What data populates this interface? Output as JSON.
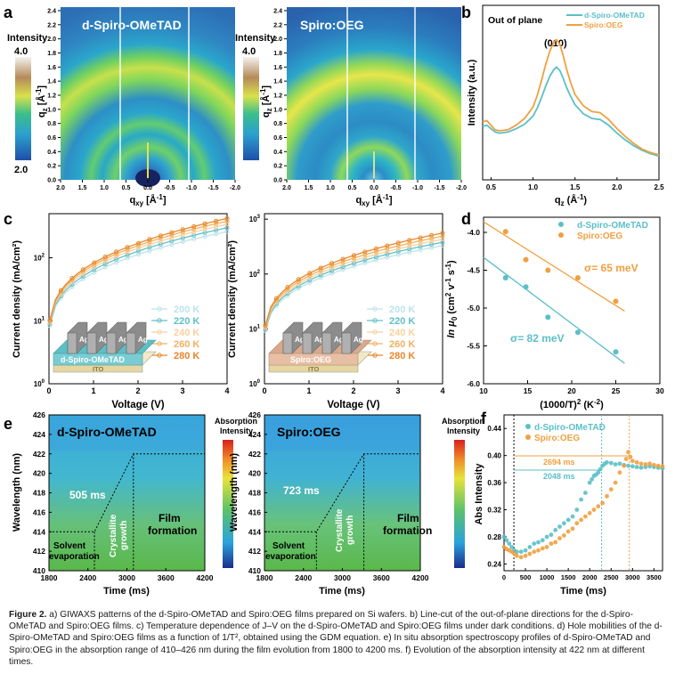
{
  "panels": {
    "a": {
      "letter": "a",
      "left_title": "d-Spiro-OMeTAD",
      "right_title": "Spiro:OEG",
      "intensity_label": "Intensity",
      "intensity_max": "4.0",
      "intensity_min": "2.0",
      "ylabel": "q",
      "ylabel_sub": "z",
      "ylabel_unit": " [Å",
      "ylabel_exp": "-1",
      "ylabel_close": "]",
      "xlabel": "q",
      "xlabel_sub": "xy",
      "xlabel_unit": " [Å",
      "xlabel_exp": "-1",
      "xlabel_close": "]",
      "yticks": [
        "0.0",
        "0.2",
        "0.4",
        "0.6",
        "0.8",
        "1.0",
        "1.2",
        "1.4",
        "1.6",
        "1.8",
        "2.0",
        "2.2",
        "2.4"
      ],
      "xticks": [
        "2.0",
        "1.5",
        "1.0",
        "0.5",
        "0.0",
        "-0.5",
        "-1.0",
        "-1.5",
        "-2.0"
      ]
    },
    "b": {
      "letter": "b",
      "title": "Out of plane",
      "peak_label": "(010)",
      "ylabel": "Intensity (a.u.)",
      "xlabel": "q",
      "xlabel_sub": "z",
      "xlabel_unit": " (Å",
      "xlabel_exp": "-1",
      "xlabel_close": ")",
      "xticks": [
        "0.5",
        "1.0",
        "1.5",
        "2.0",
        "2.5"
      ],
      "legend": [
        "d-Spiro-OMeTAD",
        "Spiro:OEG"
      ]
    },
    "c": {
      "letter": "c",
      "ylabel": "Current density (mA/cm²)",
      "xlabel": "Voltage (V)",
      "xticks": [
        "0",
        "1",
        "2",
        "3",
        "4"
      ],
      "left_yticks": [
        "10",
        "10",
        "10"
      ],
      "left_yexps": [
        "0",
        "1",
        "2"
      ],
      "right_yticks": [
        "10",
        "10",
        "10",
        "10"
      ],
      "right_yexps": [
        "0",
        "1",
        "2",
        "3"
      ],
      "temps": [
        "200 K",
        "220 K",
        "240 K",
        "260 K",
        "280 K"
      ],
      "left_device": {
        "electrode": "Ag",
        "layer": "d-Spiro-OMeTAD",
        "substrate": "ITO"
      },
      "right_device": {
        "electrode": "Ag",
        "layer": "Spiro:OEG",
        "substrate": "ITO"
      }
    },
    "d": {
      "letter": "d",
      "ylabel_pre": "ln μ",
      "ylabel_sub": "0",
      "ylabel_post": " (cm",
      "ylabel_exp1": "2",
      "ylabel_mid": " v",
      "ylabel_exp2": "-1",
      "ylabel_end": " s",
      "ylabel_exp3": "-1",
      "ylabel_close": ")",
      "xlabel": "(1000/T)",
      "xlabel_exp": "2",
      "xlabel_unit": " (K",
      "xlabel_exp2": "-2",
      "xlabel_close": ")",
      "xticks": [
        "10",
        "15",
        "20",
        "25",
        "30"
      ],
      "yticks": [
        "-4.0",
        "-4.5",
        "-5.0",
        "-5.5",
        "-6.0"
      ],
      "legend": [
        "d-Spiro-OMeTAD",
        "Spiro:OEG"
      ],
      "sigma_oeg": "σ= 65 meV",
      "sigma_spiro": "σ= 82 meV"
    },
    "e": {
      "letter": "e",
      "left_title": "d-Spiro-OMeTAD",
      "right_title": "Spiro:OEG",
      "left_time": "505 ms",
      "right_time": "723 ms",
      "ylabel": "Wavelength (nm)",
      "xlabel": "Time (ms)",
      "yticks": [
        "410",
        "412",
        "414",
        "416",
        "418",
        "420",
        "422",
        "424",
        "426"
      ],
      "xticks": [
        "1800",
        "2400",
        "3000",
        "3600",
        "4200"
      ],
      "stage1": [
        "Solvent",
        "evaporation"
      ],
      "stage2": [
        "Crystallite",
        "growth"
      ],
      "stage3": [
        "Film",
        "formation"
      ],
      "cbar_label": [
        "Absorption",
        "Intensity"
      ]
    },
    "f": {
      "letter": "f",
      "ylabel": "Abs Intensity",
      "xlabel": "Time (ms)",
      "yticks": [
        "0.24",
        "0.28",
        "0.32",
        "0.36",
        "0.40",
        "0.44"
      ],
      "xticks": [
        "0",
        "500",
        "1000",
        "1500",
        "2000",
        "2500",
        "3000",
        "3500"
      ],
      "legend": [
        "d-Spiro-OMeTAD",
        "Spiro:OEG"
      ],
      "interval_oeg": "2694 ms",
      "interval_spiro": "2048 ms"
    }
  },
  "chart_data": [
    {
      "panel": "b",
      "type": "line",
      "x_range": [
        0.4,
        2.5
      ],
      "series": [
        {
          "name": "d-Spiro-OMeTAD",
          "color": "#5bbfc7",
          "x": [
            0.4,
            0.45,
            0.5,
            0.55,
            0.6,
            0.7,
            0.8,
            0.9,
            1.0,
            1.05,
            1.1,
            1.15,
            1.2,
            1.25,
            1.28,
            1.32,
            1.36,
            1.4,
            1.45,
            1.5,
            1.6,
            1.7,
            1.8,
            1.9,
            2.0,
            2.1,
            2.2,
            2.3,
            2.4,
            2.5
          ],
          "y": [
            0.36,
            0.37,
            0.34,
            0.31,
            0.3,
            0.31,
            0.34,
            0.38,
            0.45,
            0.52,
            0.61,
            0.71,
            0.8,
            0.86,
            0.88,
            0.85,
            0.78,
            0.7,
            0.62,
            0.55,
            0.47,
            0.43,
            0.42,
            0.37,
            0.3,
            0.24,
            0.19,
            0.15,
            0.12,
            0.1
          ]
        },
        {
          "name": "Spiro:OEG",
          "color": "#f0a040",
          "x": [
            0.4,
            0.45,
            0.5,
            0.55,
            0.6,
            0.7,
            0.8,
            0.9,
            1.0,
            1.05,
            1.1,
            1.15,
            1.2,
            1.25,
            1.28,
            1.32,
            1.36,
            1.4,
            1.45,
            1.5,
            1.6,
            1.7,
            1.8,
            1.9,
            2.0,
            2.1,
            2.2,
            2.3,
            2.4,
            2.5
          ],
          "y": [
            0.4,
            0.41,
            0.37,
            0.33,
            0.32,
            0.33,
            0.37,
            0.43,
            0.53,
            0.63,
            0.76,
            0.9,
            1.02,
            1.1,
            1.12,
            1.08,
            0.98,
            0.86,
            0.74,
            0.64,
            0.54,
            0.49,
            0.48,
            0.42,
            0.34,
            0.27,
            0.21,
            0.16,
            0.13,
            0.11
          ]
        }
      ]
    },
    {
      "panel": "c-left",
      "type": "line",
      "x_range": [
        0,
        4
      ],
      "y_log": true,
      "y_range_log": [
        0,
        2.7
      ],
      "temperatures": [
        "200 K",
        "220 K",
        "240 K",
        "260 K",
        "280 K"
      ],
      "colors": [
        "#bfe4ea",
        "#62c0c8",
        "#f7d19e",
        "#f2b060",
        "#e8862a"
      ],
      "j_at_4V": [
        260,
        300,
        340,
        380,
        420
      ]
    },
    {
      "panel": "c-right",
      "type": "line",
      "x_range": [
        0,
        4
      ],
      "y_log": true,
      "y_range_log": [
        0,
        3.1
      ],
      "temperatures": [
        "200 K",
        "220 K",
        "240 K",
        "260 K",
        "280 K"
      ],
      "colors": [
        "#bfe4ea",
        "#62c0c8",
        "#f7d19e",
        "#f2b060",
        "#e8862a"
      ],
      "j_at_4V": [
        330,
        380,
        430,
        490,
        560
      ]
    },
    {
      "panel": "d",
      "type": "scatter",
      "x_range": [
        10,
        30
      ],
      "y_range": [
        -6.0,
        -3.8
      ],
      "series": [
        {
          "name": "d-Spiro-OMeTAD",
          "color": "#5bbfc7",
          "x": [
            12.5,
            14.8,
            17.3,
            20.7,
            25.0
          ],
          "y": [
            -4.6,
            -4.72,
            -5.12,
            -5.32,
            -5.58
          ],
          "fit": [
            [
              10,
              -4.33
            ],
            [
              26,
              -5.73
            ]
          ]
        },
        {
          "name": "Spiro:OEG",
          "color": "#f0a040",
          "x": [
            12.5,
            14.8,
            17.3,
            20.7,
            25.0
          ],
          "y": [
            -3.99,
            -4.36,
            -4.5,
            -4.6,
            -4.91
          ],
          "fit": [
            [
              10,
              -3.86
            ],
            [
              26,
              -5.04
            ]
          ]
        }
      ]
    },
    {
      "panel": "e",
      "type": "heatmap",
      "x_range": [
        1800,
        4200
      ],
      "y_range": [
        410,
        426
      ],
      "left_path": [
        [
          1800,
          414
        ],
        [
          2500,
          414
        ],
        [
          3100,
          422
        ],
        [
          4200,
          422
        ]
      ],
      "right_path": [
        [
          1800,
          414
        ],
        [
          2600,
          414
        ],
        [
          3330,
          422
        ],
        [
          4200,
          422
        ]
      ]
    },
    {
      "panel": "f",
      "type": "scatter",
      "x_range": [
        0,
        3700
      ],
      "y_range": [
        0.23,
        0.46
      ],
      "series": [
        {
          "name": "d-Spiro-OMeTAD",
          "color": "#5bbfc7",
          "x": [
            0,
            60,
            120,
            180,
            240,
            300,
            400,
            500,
            600,
            700,
            800,
            900,
            1000,
            1100,
            1200,
            1300,
            1400,
            1500,
            1600,
            1700,
            1800,
            1900,
            2000,
            2050,
            2100,
            2150,
            2200,
            2250,
            2300,
            2350,
            2400,
            2500,
            2600,
            2700,
            2800,
            2900,
            3000,
            3100,
            3200,
            3300,
            3400,
            3500,
            3600,
            3700
          ],
          "y": [
            0.28,
            0.275,
            0.27,
            0.265,
            0.26,
            0.258,
            0.258,
            0.26,
            0.265,
            0.27,
            0.272,
            0.275,
            0.28,
            0.283,
            0.29,
            0.295,
            0.3,
            0.305,
            0.31,
            0.32,
            0.335,
            0.345,
            0.36,
            0.365,
            0.37,
            0.372,
            0.375,
            0.38,
            0.385,
            0.388,
            0.39,
            0.389,
            0.387,
            0.388,
            0.386,
            0.385,
            0.384,
            0.383,
            0.382,
            0.383,
            0.384,
            0.383,
            0.382,
            0.381
          ]
        },
        {
          "name": "Spiro:OEG",
          "color": "#f0a040",
          "x": [
            0,
            60,
            120,
            180,
            240,
            300,
            400,
            500,
            600,
            700,
            800,
            900,
            1000,
            1100,
            1200,
            1300,
            1400,
            1500,
            1600,
            1700,
            1800,
            1900,
            2000,
            2100,
            2200,
            2300,
            2400,
            2500,
            2600,
            2700,
            2800,
            2850,
            2900,
            2950,
            3000,
            3100,
            3200,
            3300,
            3400,
            3500,
            3600,
            3700
          ],
          "y": [
            0.265,
            0.262,
            0.26,
            0.258,
            0.255,
            0.252,
            0.25,
            0.252,
            0.255,
            0.258,
            0.26,
            0.263,
            0.265,
            0.27,
            0.272,
            0.278,
            0.282,
            0.288,
            0.292,
            0.3,
            0.305,
            0.31,
            0.315,
            0.32,
            0.325,
            0.33,
            0.34,
            0.35,
            0.36,
            0.375,
            0.385,
            0.395,
            0.405,
            0.398,
            0.392,
            0.39,
            0.388,
            0.387,
            0.388,
            0.386,
            0.385,
            0.384
          ]
        }
      ],
      "markers": {
        "start": 230,
        "spiro_end": 2278,
        "oeg_end": 2924
      }
    }
  ],
  "caption": {
    "label": "Figure 2.",
    "text": " a) GIWAXS patterns of the d-Spiro-OMeTAD and Spiro:OEG films prepared on Si wafers. b) Line-cut of the out-of-plane directions for the d-Spiro-OMeTAD and Spiro:OEG films. c) Temperature dependence of J–V on the d-Spiro-OMeTAD and Spiro:OEG films under dark conditions. d) Hole mobilities of the d-Spiro-OMeTAD and Spiro:OEG films as a function of 1/T², obtained using the GDM equation. e) In situ absorption spectroscopy profiles of d-Spiro-OMeTAD and Spiro:OEG in the absorption range of 410–426 nm during the film evolution from 1800 to 4200 ms. f) Evolution of the absorption intensity at 422 nm at different times."
  }
}
